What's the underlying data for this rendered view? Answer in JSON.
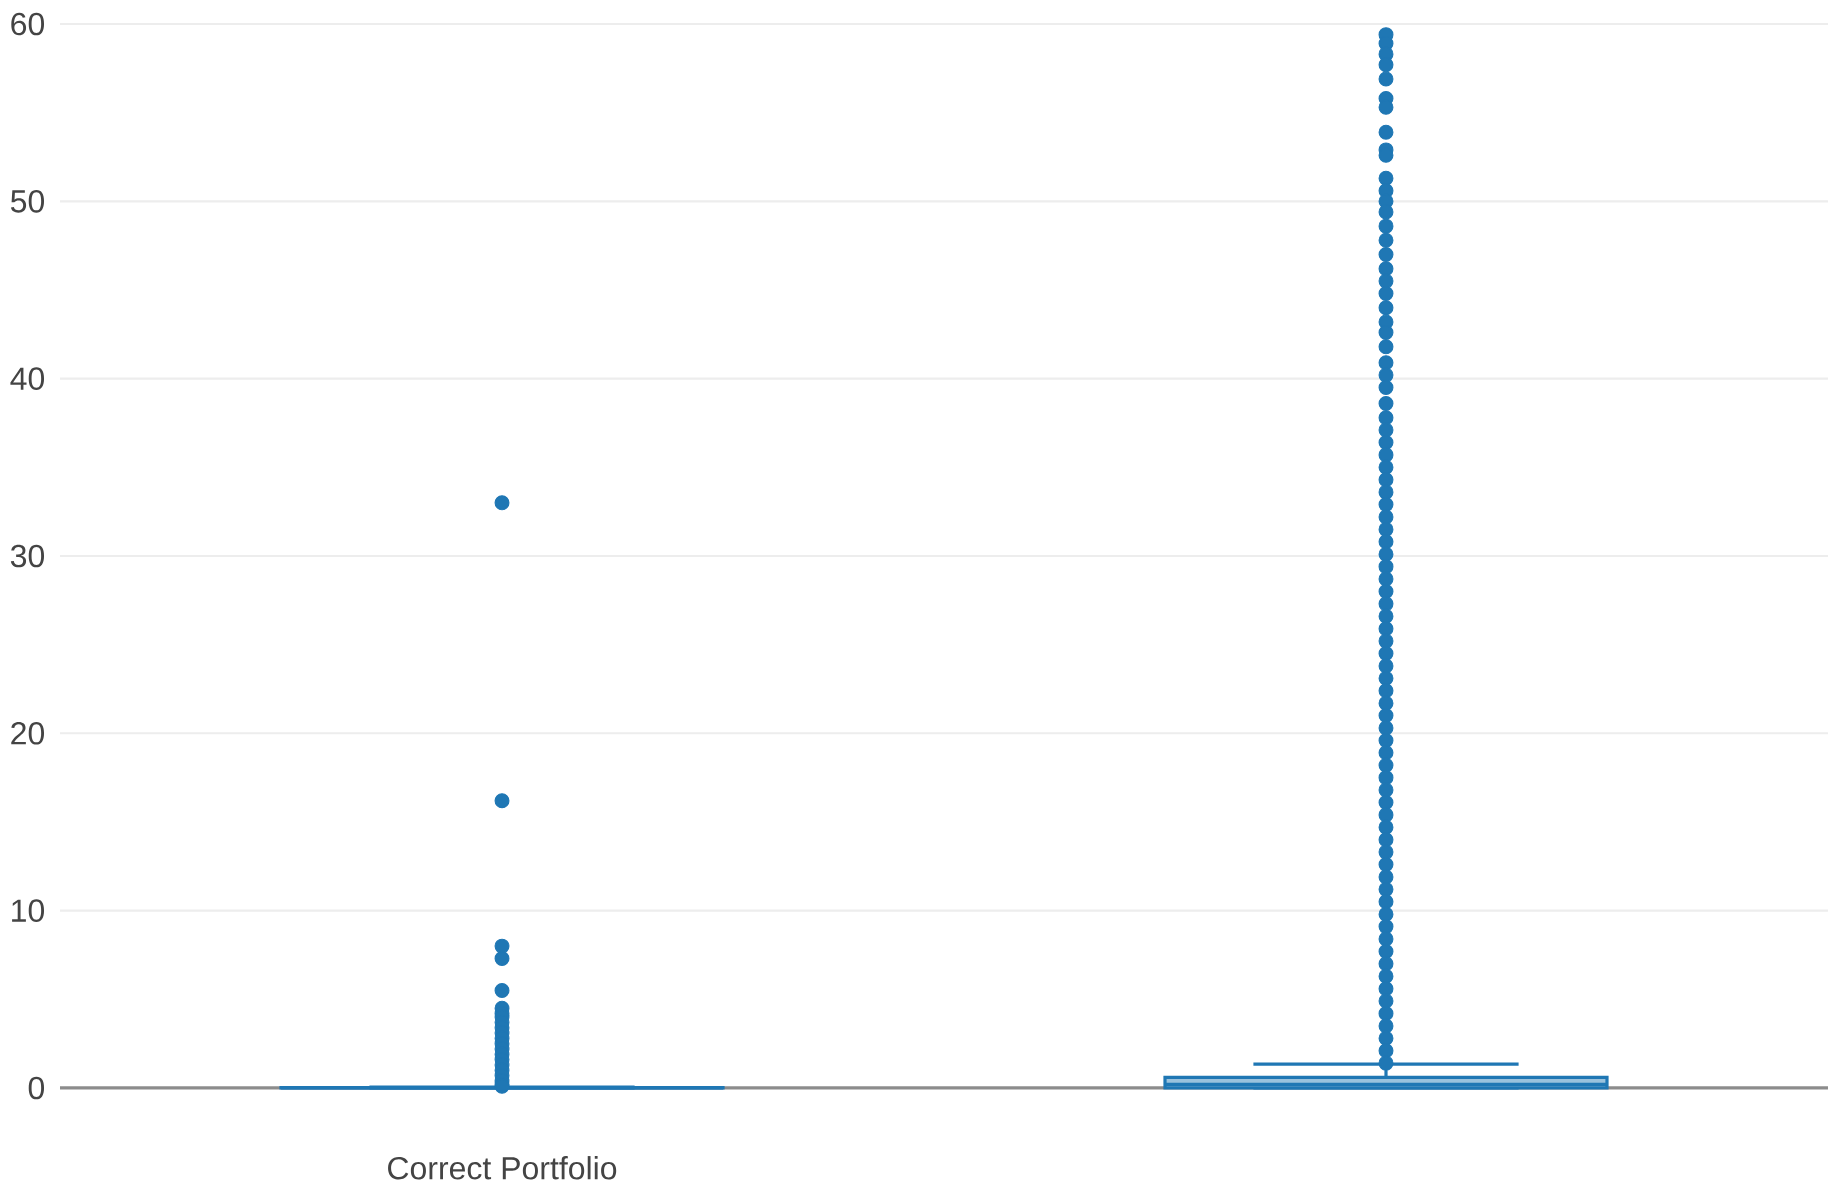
{
  "chart_data": {
    "type": "box",
    "categories": [
      "Correct Portfolio",
      null
    ],
    "color": "#1f77b4",
    "marker": "circle",
    "ylim": [
      0,
      60
    ],
    "yticks": [
      0,
      10,
      20,
      30,
      40,
      50,
      60
    ],
    "grid": "y",
    "boxes": [
      {
        "low": 0,
        "q1": 0,
        "median": 0,
        "q3": 0.02,
        "high": 0.05,
        "outliers": [
          33.0,
          16.2,
          8.0,
          7.3,
          5.5,
          4.5,
          4.2,
          4.0,
          3.7,
          3.4,
          3.1,
          2.8,
          2.5,
          2.2,
          1.9,
          1.6,
          1.3,
          1.0,
          0.7,
          0.4,
          0.2,
          0.1
        ]
      },
      {
        "low": 0,
        "q1": 0,
        "median": 0.2,
        "q3": 0.6,
        "high": 1.35,
        "outliers": [
          59.4,
          58.9,
          58.3,
          57.7,
          56.9,
          55.8,
          55.3,
          53.9,
          52.9,
          52.6,
          51.3,
          50.6,
          50.0,
          49.4,
          48.6,
          47.8,
          47.0,
          46.2,
          45.5,
          44.8,
          44.0,
          43.2,
          42.6,
          41.8,
          40.9,
          40.2,
          39.5,
          38.6,
          37.8,
          37.1,
          36.4,
          35.7,
          35.0,
          34.3,
          33.6,
          32.9,
          32.2,
          31.5,
          30.8,
          30.1,
          29.4,
          28.7,
          28.0,
          27.3,
          26.6,
          25.9,
          25.2,
          24.5,
          23.8,
          23.1,
          22.4,
          21.7,
          21.0,
          20.3,
          19.6,
          18.9,
          18.2,
          17.5,
          16.8,
          16.1,
          15.4,
          14.7,
          14.0,
          13.3,
          12.6,
          11.9,
          11.2,
          10.5,
          9.8,
          9.1,
          8.4,
          7.7,
          7.0,
          6.3,
          5.6,
          4.9,
          4.2,
          3.5,
          2.8,
          2.1,
          1.4
        ]
      }
    ]
  }
}
